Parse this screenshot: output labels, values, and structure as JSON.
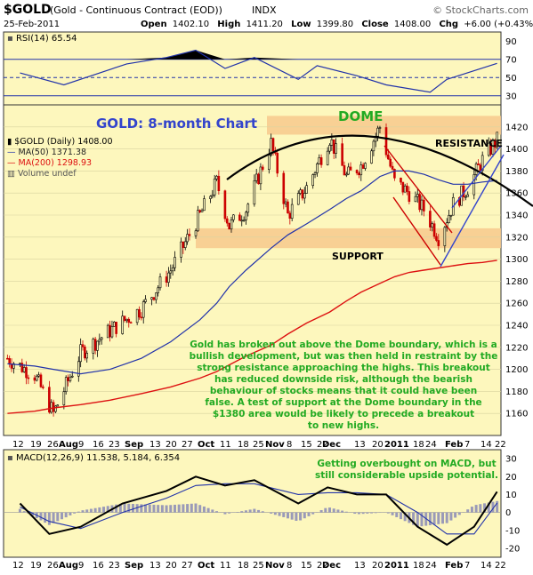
{
  "header": {
    "symbol": "$GOLD",
    "name": "(Gold - Continuous Contract (EOD))",
    "exchange": "INDX",
    "date": "25-Feb-2011",
    "ohlc": "Open 1402.10  High 1411.20  Low 1399.80  Close 1408.00  Chg +6.00 (+0.43%)",
    "open_label": "Open",
    "open": "1402.10",
    "high_label": "High",
    "high": "1411.20",
    "low_label": "Low",
    "low": "1399.80",
    "close_label": "Close",
    "close": "1408.00",
    "chg_label": "Chg",
    "chg": "+6.00 (+0.43%)",
    "copyright": "© StockCharts.com"
  },
  "rsi_panel": {
    "label": "RSI(14) 65.54",
    "ticks": [
      "90",
      "70",
      "50",
      "30"
    ]
  },
  "main_panel": {
    "title": "GOLD: 8-month Chart",
    "dome_label": "DOME",
    "resistance_label": "RESISTANCE",
    "support_label": "SUPPORT",
    "legend": [
      "$GOLD (Daily) 1408.00",
      "MA(50) 1371.38",
      "MA(200) 1298.93",
      "Volume undef"
    ],
    "annotation": [
      "Gold has broken out above the Dome boundary, which is a",
      "bullish development, but was then held in restraint by the",
      "strong resistance approaching the highs. This breakout",
      "has reduced downside risk, although the bearish",
      "behaviour of stocks means that it could have been",
      "false. A test of support at the Dome boundary in the",
      "$1380 area would be likely to precede a breakout",
      "to new highs."
    ]
  },
  "x_axis": [
    "12",
    "19",
    "26",
    "Aug",
    "9",
    "16",
    "23",
    "Sep",
    "13",
    "20",
    "27",
    "Oct",
    "11",
    "18",
    "25",
    "Nov",
    "8",
    "15",
    "22",
    "Dec",
    "13",
    "20",
    "2011",
    "18",
    "24",
    "Feb",
    "7",
    "14",
    "22"
  ],
  "macd_panel": {
    "label": "MACD(12,26,9) 11.538, 5.184, 6.354",
    "annotation": [
      "Getting overbought on MACD, but",
      "still considerable upside potential."
    ],
    "ticks": [
      "30",
      "20",
      "10",
      "0",
      "-10",
      "-20"
    ]
  },
  "colors": {
    "panel_bg": "#fdf7bd",
    "up": "#000000",
    "down": "#cc0000",
    "ma50": "#2233aa",
    "ma200": "#dd1111",
    "zone": "#f7c98d",
    "annotation": "#22aa22",
    "title": "#3344cc",
    "trendline": "#cc0000",
    "channel": "#3344cc"
  },
  "chart_data": [
    {
      "type": "line",
      "name": "RSI(14)",
      "ylim": [
        20,
        100
      ],
      "x": [
        "2010-07-12",
        "2010-08-02",
        "2010-09-01",
        "2010-09-20",
        "2010-10-04",
        "2010-10-18",
        "2010-11-01",
        "2010-11-22",
        "2010-12-01",
        "2010-12-20",
        "2011-01-03",
        "2011-01-24",
        "2011-02-01",
        "2011-02-25"
      ],
      "values": [
        55,
        42,
        65,
        72,
        80,
        60,
        72,
        48,
        63,
        52,
        42,
        34,
        48,
        65.54
      ],
      "reference_lines": [
        70,
        50,
        30
      ]
    },
    {
      "type": "line",
      "ylim": [
        1140,
        1440
      ],
      "x": [
        "2010-07-06",
        "2010-07-19",
        "2010-07-28",
        "2010-08-10",
        "2010-08-24",
        "2010-09-08",
        "2010-09-22",
        "2010-10-06",
        "2010-10-14",
        "2010-10-20",
        "2010-10-28",
        "2010-11-09",
        "2010-11-17",
        "2010-11-26",
        "2010-12-07",
        "2010-12-15",
        "2010-12-22",
        "2010-12-31",
        "2011-01-07",
        "2011-01-14",
        "2011-01-21",
        "2011-01-28",
        "2011-02-04",
        "2011-02-11",
        "2011-02-18",
        "2011-02-25"
      ],
      "series": [
        {
          "name": "$GOLD (Daily)",
          "values": [
            1210,
            1195,
            1160,
            1215,
            1235,
            1255,
            1290,
            1340,
            1370,
            1330,
            1345,
            1405,
            1340,
            1365,
            1410,
            1375,
            1385,
            1420,
            1370,
            1360,
            1345,
            1320,
            1350,
            1365,
            1390,
            1408.0
          ]
        },
        {
          "name": "MA(50)",
          "values": [
            1205,
            1203,
            1200,
            1196,
            1200,
            1210,
            1225,
            1245,
            1260,
            1275,
            1290,
            1310,
            1322,
            1332,
            1345,
            1355,
            1362,
            1375,
            1380,
            1380,
            1377,
            1372,
            1368,
            1368,
            1370,
            1371.38
          ]
        },
        {
          "name": "MA(200)",
          "values": [
            1160,
            1162,
            1165,
            1168,
            1172,
            1178,
            1184,
            1192,
            1198,
            1204,
            1212,
            1222,
            1232,
            1242,
            1252,
            1262,
            1270,
            1278,
            1284,
            1288,
            1290,
            1292,
            1294,
            1296,
            1297,
            1298.93
          ]
        }
      ],
      "resistance_zone": [
        1413,
        1430
      ],
      "support_zone": [
        1310,
        1328
      ],
      "y_ticks": [
        1160,
        1180,
        1200,
        1220,
        1240,
        1260,
        1280,
        1300,
        1320,
        1340,
        1360,
        1380,
        1400,
        1420
      ]
    },
    {
      "type": "line",
      "name": "MACD(12,26,9)",
      "ylim": [
        -25,
        35
      ],
      "x": [
        "2010-07-12",
        "2010-07-26",
        "2010-08-10",
        "2010-08-30",
        "2010-09-20",
        "2010-10-04",
        "2010-10-18",
        "2010-11-01",
        "2010-11-22",
        "2010-12-06",
        "2010-12-20",
        "2011-01-03",
        "2011-01-18",
        "2011-02-01",
        "2011-02-14",
        "2011-02-25"
      ],
      "series": [
        {
          "name": "MACD",
          "values": [
            5,
            -12,
            -8,
            5,
            12,
            20,
            15,
            18,
            5,
            14,
            10,
            10,
            -8,
            -18,
            -8,
            11.538
          ]
        },
        {
          "name": "Signal",
          "values": [
            3,
            -5,
            -9,
            0,
            8,
            15,
            16,
            16,
            10,
            11,
            11,
            10,
            0,
            -12,
            -12,
            5.184
          ]
        },
        {
          "name": "Histogram",
          "values": [
            2,
            -7,
            1,
            5,
            4,
            5,
            -1,
            2,
            -5,
            3,
            -1,
            0,
            -8,
            -6,
            4,
            6.354
          ]
        }
      ]
    }
  ]
}
